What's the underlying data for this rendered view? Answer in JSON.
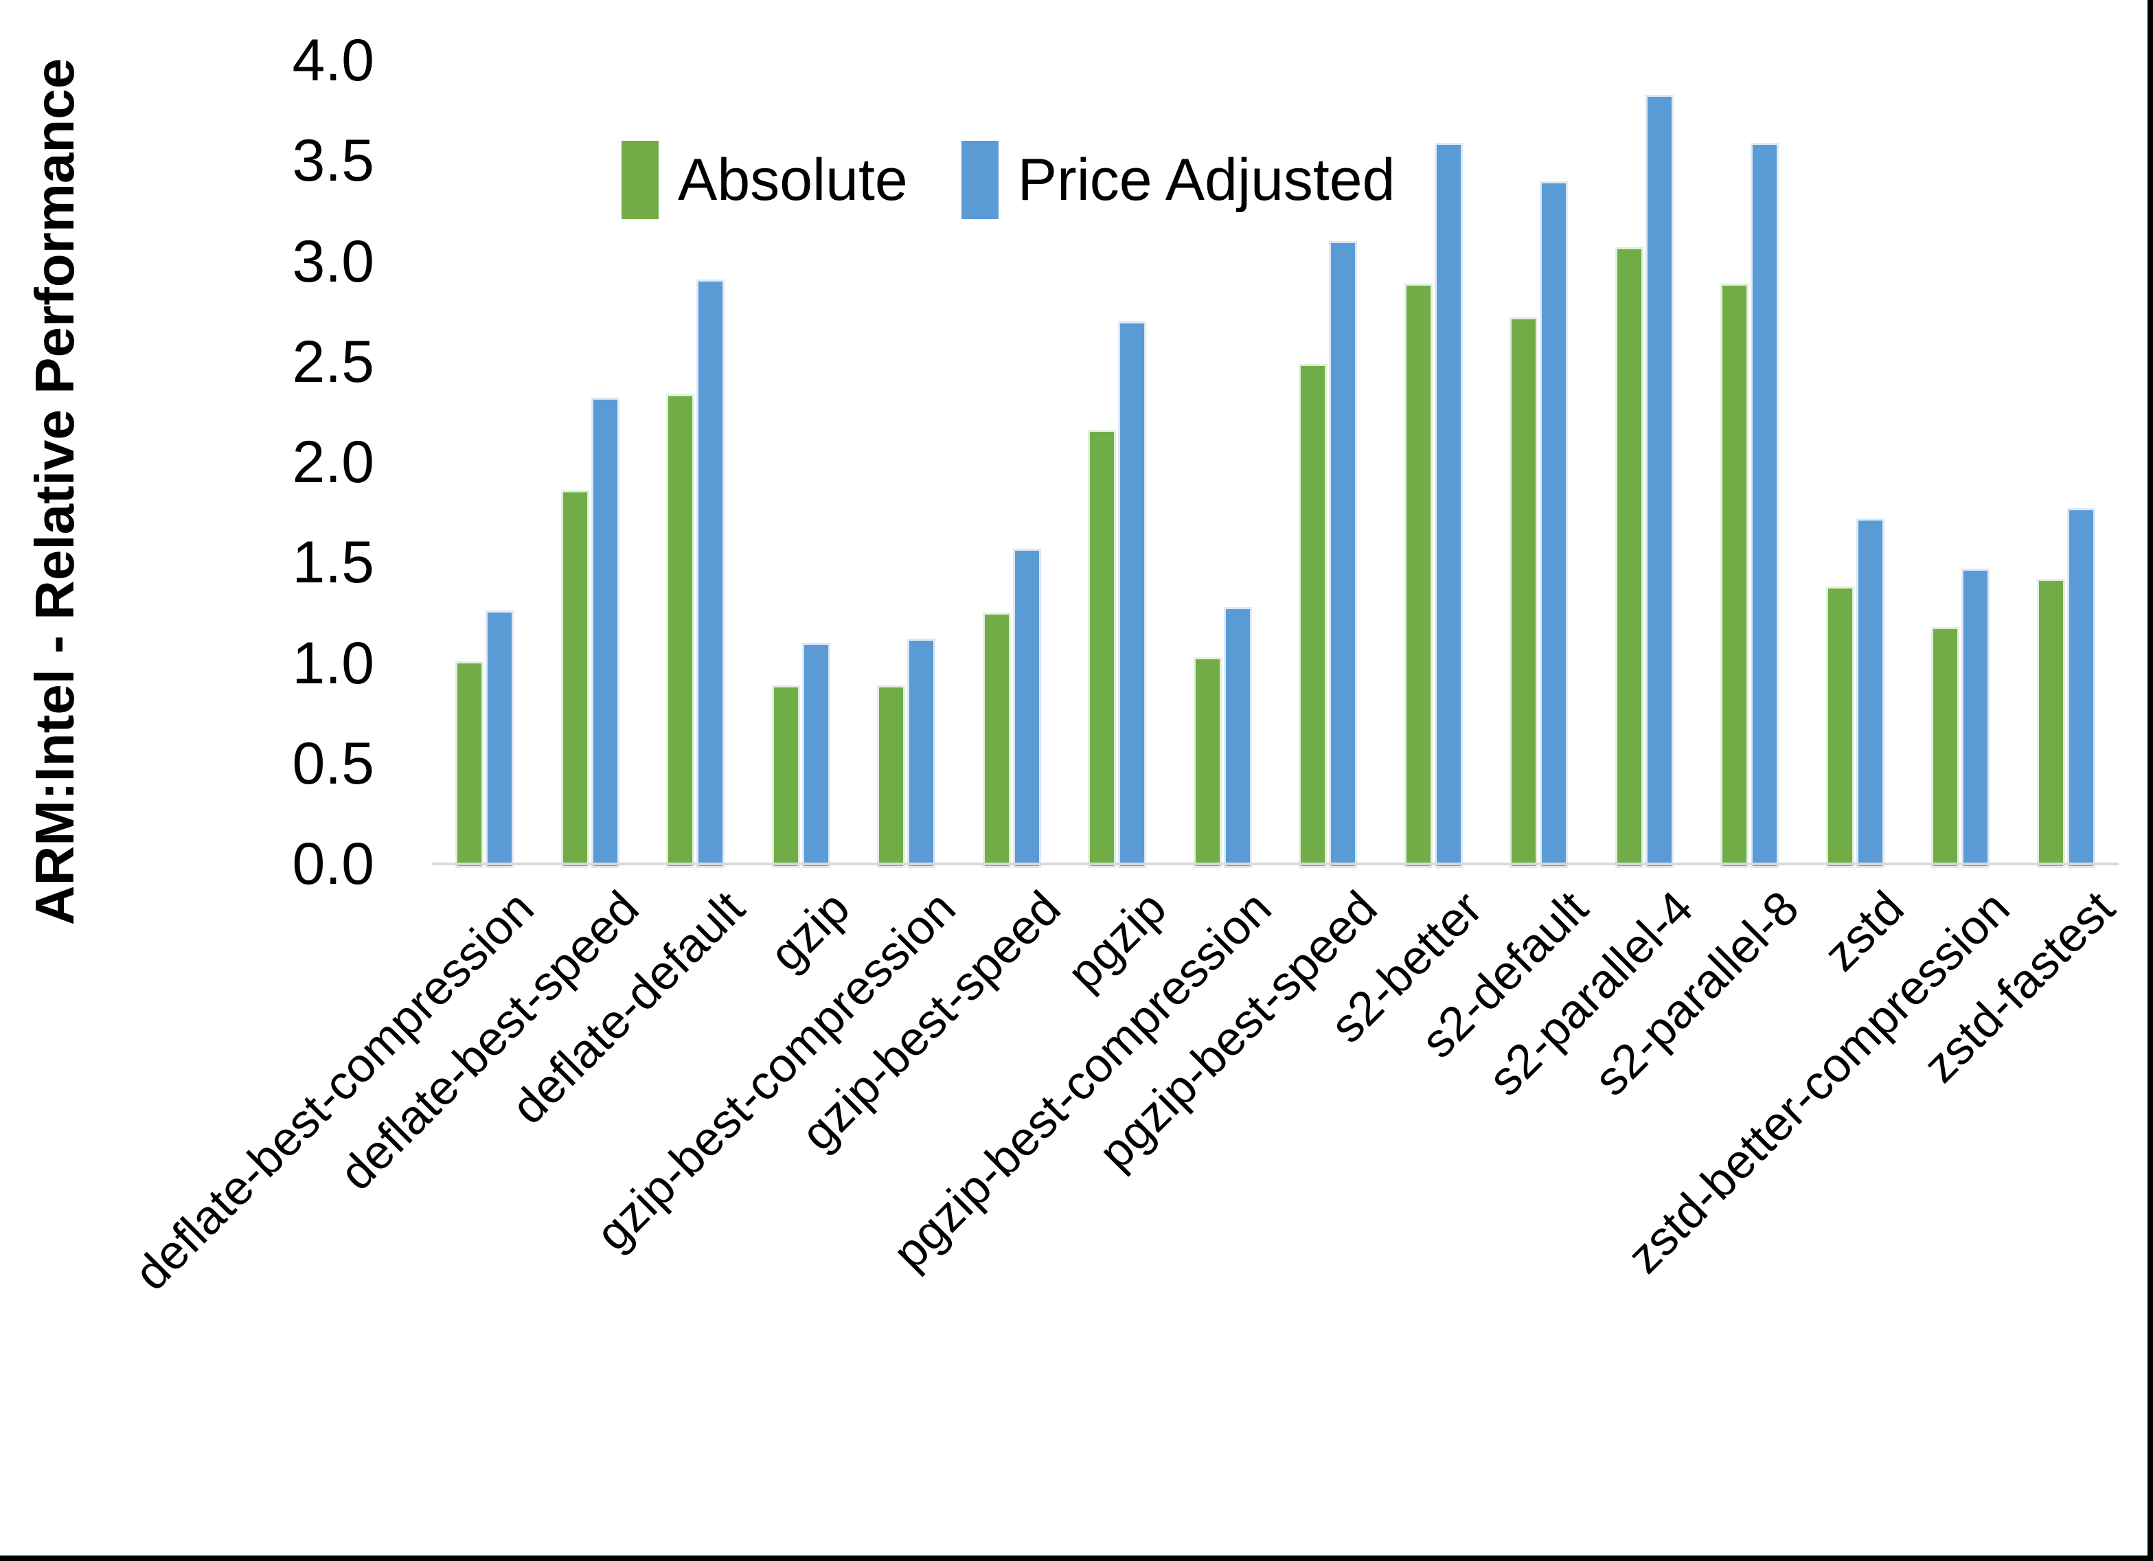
{
  "chart_data": {
    "type": "bar",
    "title": "",
    "xlabel": "",
    "ylabel": "ARM:Intel - Relative Performance",
    "ylim": [
      0.0,
      4.0
    ],
    "ytick_step": 0.5,
    "ytick_decimals": 1,
    "grid": false,
    "legend_position": "top-center",
    "axis_line_color": "#D9D9D9",
    "categories": [
      "deflate-best-compression",
      "deflate-best-speed",
      "deflate-default",
      "gzip",
      "gzip-best-compression",
      "gzip-best-speed",
      "pgzip",
      "pgzip-best-compression",
      "pgzip-best-speed",
      "s2-better",
      "s2-default",
      "s2-parallel-4",
      "s2-parallel-8",
      "zstd",
      "zstd-better-compression",
      "zstd-fastest"
    ],
    "series": [
      {
        "name": "Absolute",
        "color": "#70AD47",
        "values": [
          1.01,
          1.86,
          2.34,
          0.89,
          0.89,
          1.25,
          2.16,
          1.03,
          2.49,
          2.89,
          2.72,
          3.07,
          2.89,
          1.38,
          1.18,
          1.42
        ]
      },
      {
        "name": "Price Adjusted",
        "color": "#5B9BD5",
        "values": [
          1.26,
          2.32,
          2.91,
          1.1,
          1.12,
          1.57,
          2.7,
          1.28,
          3.1,
          3.59,
          3.4,
          3.83,
          3.59,
          1.72,
          1.47,
          1.77
        ]
      }
    ]
  }
}
